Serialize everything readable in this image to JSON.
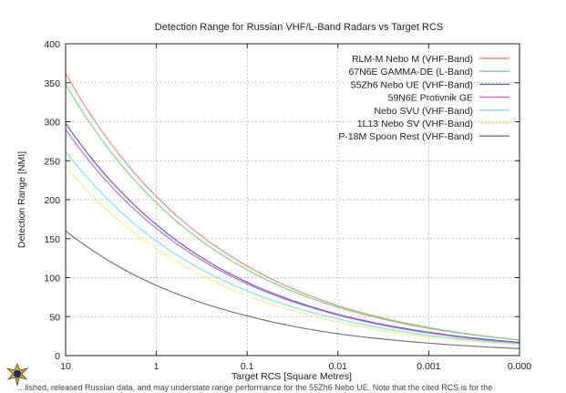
{
  "chart_data": {
    "type": "line",
    "title": "Detection Range for Russian VHF/L-Band Radars vs Target RCS",
    "xlabel": "Target RCS [Square Metres]",
    "ylabel": "Detection Range [NMI]",
    "xscale": "log",
    "xaxis_direction": "decreasing",
    "xlim": [
      10,
      0.0001
    ],
    "ylim": [
      0,
      400
    ],
    "xticks": [
      10,
      1,
      0.1,
      0.01,
      0.001,
      0.0001
    ],
    "xtick_labels": [
      "10",
      "1",
      "0.1",
      "0.01",
      "0.001",
      "0.000"
    ],
    "yticks": [
      0,
      50,
      100,
      150,
      200,
      250,
      300,
      350,
      400
    ],
    "grid": true,
    "legend_position": "top-right",
    "series": [
      {
        "name": "RLM-M Nebo M (VHF-Band)",
        "color": "#e8898a",
        "x": [
          10,
          1,
          0.1,
          0.01,
          0.001,
          0.0001
        ],
        "y": [
          362,
          204,
          115,
          64,
          36,
          20
        ]
      },
      {
        "name": "67N6E GAMMA-DE (L-Band)",
        "color": "#7fd67f",
        "x": [
          10,
          1,
          0.1,
          0.01,
          0.001,
          0.0001
        ],
        "y": [
          348,
          196,
          110,
          62,
          35,
          20
        ]
      },
      {
        "name": "55Zh6 Nebo UE (VHF-Band)",
        "color": "#5b63c9",
        "x": [
          10,
          1,
          0.1,
          0.01,
          0.001,
          0.0001
        ],
        "y": [
          298,
          168,
          94,
          53,
          30,
          17
        ]
      },
      {
        "name": "59N6E Protivnik GE",
        "color": "#c46ad6",
        "x": [
          10,
          1,
          0.1,
          0.01,
          0.001,
          0.0001
        ],
        "y": [
          290,
          163,
          92,
          52,
          29,
          16
        ]
      },
      {
        "name": "Nebo SVU (VHF-Band)",
        "color": "#7fe1ee",
        "x": [
          10,
          1,
          0.1,
          0.01,
          0.001,
          0.0001
        ],
        "y": [
          262,
          147,
          83,
          47,
          26,
          15
        ]
      },
      {
        "name": "1L13 Nebo SV (VHF-Band)",
        "color": "#f2ee93",
        "x": [
          10,
          1,
          0.1,
          0.01,
          0.001,
          0.0001
        ],
        "y": [
          243,
          137,
          77,
          43,
          24,
          14
        ]
      },
      {
        "name": "P-18M Spoon Rest (VHF-Band)",
        "color": "#777777",
        "x": [
          10,
          1,
          0.1,
          0.01,
          0.001,
          0.0001
        ],
        "y": [
          160,
          90,
          51,
          28,
          16,
          9
        ]
      }
    ]
  },
  "footer_text": "...lished, released Russian data, and may understate range performance for the 55Zh6 Nebo UE. Note that the cited RCS is for the"
}
